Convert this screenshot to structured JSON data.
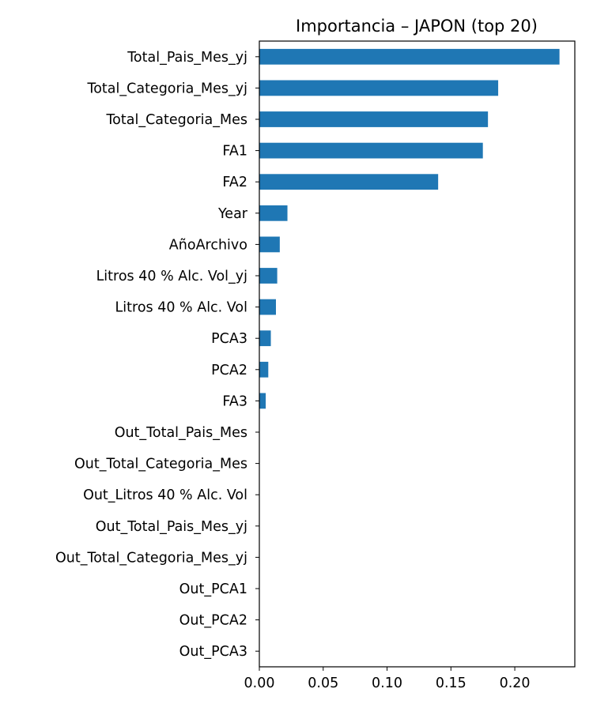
{
  "chart_data": {
    "type": "bar",
    "orientation": "horizontal",
    "title": "Importancia – JAPON (top 20)",
    "xlabel": "",
    "ylabel": "",
    "categories": [
      "Total_Pais_Mes_yj",
      "Total_Categoria_Mes_yj",
      "Total_Categoria_Mes",
      "FA1",
      "FA2",
      "Year",
      "AñoArchivo",
      "Litros 40 % Alc. Vol_yj",
      "Litros 40 % Alc. Vol",
      "PCA3",
      "PCA2",
      "FA3",
      "Out_Total_Pais_Mes",
      "Out_Total_Categoria_Mes",
      "Out_Litros 40 % Alc. Vol",
      "Out_Total_Pais_Mes_yj",
      "Out_Total_Categoria_Mes_yj",
      "Out_PCA1",
      "Out_PCA2",
      "Out_PCA3"
    ],
    "values": [
      0.235,
      0.187,
      0.179,
      0.175,
      0.14,
      0.022,
      0.016,
      0.014,
      0.013,
      0.009,
      0.007,
      0.005,
      0,
      0,
      0,
      0,
      0,
      0,
      0,
      0
    ],
    "xlim": [
      0,
      0.247
    ],
    "xticks": [
      0.0,
      0.05,
      0.1,
      0.15,
      0.2
    ],
    "xtick_labels": [
      "0.00",
      "0.05",
      "0.10",
      "0.15",
      "0.20"
    ],
    "grid": false,
    "legend": "none",
    "bar_color": "#1f77b4"
  }
}
